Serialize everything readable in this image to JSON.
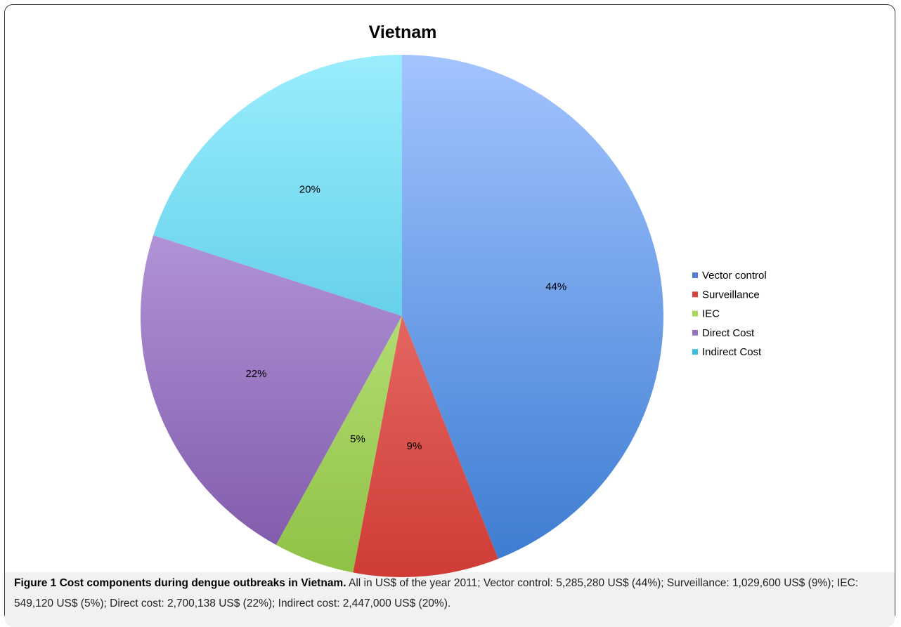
{
  "chart_data": {
    "type": "pie",
    "title": "Vietnam",
    "start_angle_deg": 90,
    "direction": "clockwise",
    "legend_position": "right",
    "slices": [
      {
        "name": "Vector control",
        "value": 44,
        "label": "44%",
        "legend_color": "#4f81d0",
        "color_light": "#a2c4ff",
        "color_dark": "#3a7ad0"
      },
      {
        "name": "Surveillance",
        "value": 9,
        "label": "9%",
        "legend_color": "#d9423d",
        "color_light": "#f8908c",
        "color_dark": "#cf3c36"
      },
      {
        "name": "IEC",
        "value": 5,
        "label": "5%",
        "legend_color": "#a8d555",
        "color_light": "#d6f7a0",
        "color_dark": "#8fc145"
      },
      {
        "name": "Direct Cost",
        "value": 22,
        "label": "22%",
        "legend_color": "#9574c4",
        "color_light": "#cbb2ee",
        "color_dark": "#7d57a8"
      },
      {
        "name": "Indirect Cost",
        "value": 20,
        "label": "20%",
        "legend_color": "#3dbde0",
        "color_light": "#9aedfd",
        "color_dark": "#33b5d6"
      }
    ]
  },
  "caption": {
    "bold": "Figure 1 Cost components during dengue outbreaks in Vietnam.",
    "text": " All in US$ of the year 2011; Vector control: 5,285,280 US$ (44%); Surveillance: 1,029,600 US$ (9%); IEC: 549,120 US$ (5%); Direct cost: 2,700,138 US$ (22%); Indirect cost: 2,447,000 US$ (20%)."
  }
}
